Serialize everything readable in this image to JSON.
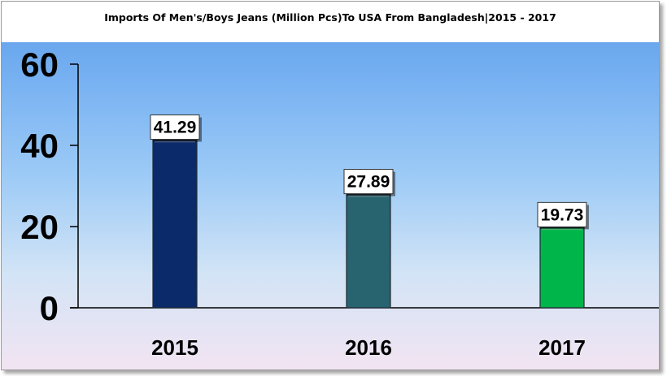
{
  "chart_data": {
    "type": "bar",
    "title": "Imports Of Men's/Boys Jeans (Million Pcs)To USA From Bangladesh|2015 - 2017",
    "xlabel": "",
    "ylabel": "",
    "ylim": [
      0,
      60
    ],
    "yticks": [
      "0",
      "20",
      "40",
      "60"
    ],
    "categories": [
      "2015",
      "2016",
      "2017"
    ],
    "values": [
      41.29,
      27.89,
      19.73
    ],
    "data_labels": [
      "41.29",
      "27.89",
      "19.73"
    ],
    "bar_colors": [
      "#0a2a6a",
      "#276470",
      "#00b54a"
    ],
    "grid": false,
    "legend": "none"
  }
}
